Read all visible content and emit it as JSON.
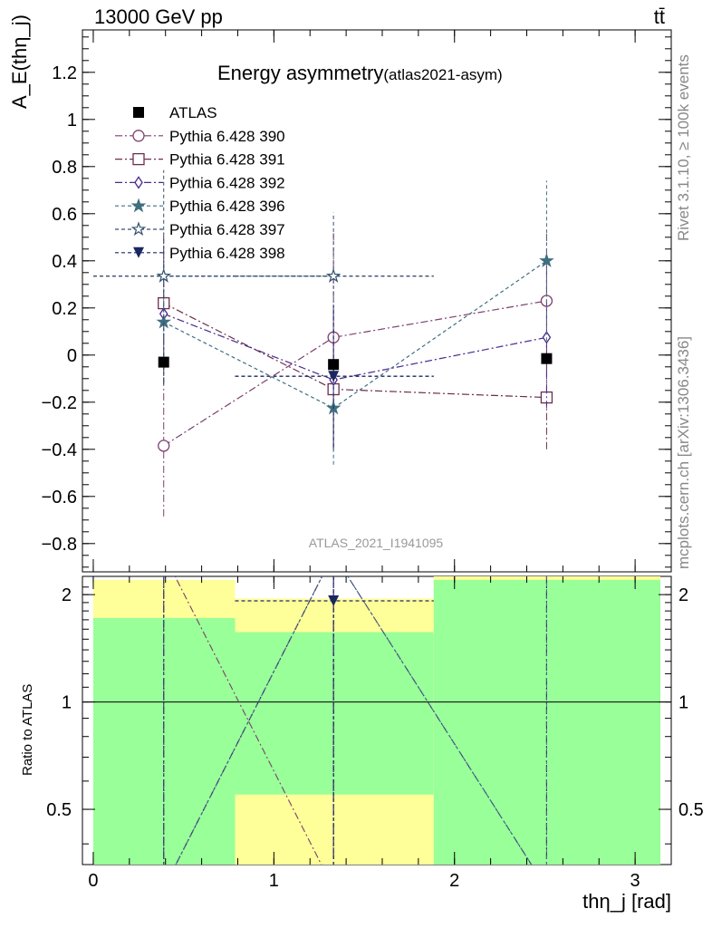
{
  "header": {
    "energy": "13000 GeV pp",
    "process": "tt̄"
  },
  "side_labels": {
    "rivet": "Rivet 3.1.10, ≥ 100k events",
    "mcplots": "mcplots.cern.ch [arXiv:1306.3436]"
  },
  "colors": {
    "band_green": "#99ff99",
    "band_yellow": "#ffff99",
    "data": "#000000"
  },
  "chart_data": {
    "type": "scatter",
    "title": "Energy asymmetry",
    "title_sub": "(atlas2021-asym)",
    "watermark": "ATLAS_2021_I1941095",
    "ylabel": "A_E(thη_j)",
    "ratio_ylabel": "Ratio to ATLAS",
    "xlabel": "thη_j [rad]",
    "xlim": [
      -0.06,
      3.2
    ],
    "ylim": [
      -0.92,
      1.38
    ],
    "ratio_ylim": [
      0.35,
      2.25
    ],
    "x_ticks": [
      0,
      1,
      2,
      3
    ],
    "y_ticks": [
      -0.8,
      -0.6,
      -0.4,
      -0.2,
      0,
      0.2,
      0.4,
      0.6,
      0.8,
      1,
      1.2
    ],
    "ratio_y_ticks": [
      0.5,
      1,
      2
    ],
    "legend_position": "top-left",
    "bins": [
      {
        "x": 0.39,
        "xlow": 0.0,
        "xhigh": 0.785
      },
      {
        "x": 1.33,
        "xlow": 0.785,
        "xhigh": 1.885
      },
      {
        "x": 2.51,
        "xlow": 1.885,
        "xhigh": 3.14
      }
    ],
    "data": {
      "name": "ATLAS",
      "y": [
        -0.03,
        -0.04,
        -0.015
      ],
      "band_inner": [
        [
          0.35,
          1.72
        ],
        [
          0.55,
          1.57
        ],
        [
          0.35,
          2.2
        ]
      ],
      "band_outer": [
        [
          0.35,
          2.2
        ],
        [
          0.35,
          1.95
        ],
        [
          0.35,
          2.25
        ]
      ]
    },
    "series": [
      {
        "name": "Pythia 6.428 390",
        "color": "#7b3f6e",
        "marker": "open-circle",
        "dash": "8 3 2 3",
        "y": [
          -0.385,
          0.075,
          0.23
        ],
        "err": [
          0.3,
          0.45,
          0.3
        ],
        "xerr": [
          false,
          false,
          false
        ]
      },
      {
        "name": "Pythia 6.428 391",
        "color": "#6b2f4f",
        "marker": "open-square",
        "dash": "8 3 2 3",
        "y": [
          0.22,
          -0.145,
          -0.18
        ],
        "err": [
          0.3,
          0.25,
          0.22
        ],
        "xerr": [
          false,
          false,
          false
        ]
      },
      {
        "name": "Pythia 6.428 392",
        "color": "#4a2a8c",
        "marker": "open-diamond",
        "dash": "8 3 2 3",
        "y": [
          0.175,
          -0.105,
          0.075
        ],
        "err": [
          0.3,
          0.3,
          0.3
        ],
        "xerr": [
          false,
          false,
          false
        ]
      },
      {
        "name": "Pythia 6.428 396",
        "color": "#3f6f80",
        "marker": "star",
        "dash": "4 3",
        "y": [
          0.14,
          -0.225,
          0.4
        ],
        "err": [
          0.25,
          0.24,
          0.34
        ],
        "xerr": [
          false,
          false,
          false
        ]
      },
      {
        "name": "Pythia 6.428 397",
        "color": "#34506e",
        "marker": "open-star",
        "dash": "4 3",
        "y": [
          0.335,
          0.335,
          null
        ],
        "err": [
          0.45,
          0.27,
          null
        ],
        "xerr": [
          true,
          true,
          false
        ]
      },
      {
        "name": "Pythia 6.428 398",
        "color": "#1a2760",
        "marker": "filled-triangle-down",
        "dash": "4 3",
        "y": [
          null,
          -0.09,
          null
        ],
        "err": [
          null,
          0.3,
          null
        ],
        "xerr": [
          false,
          true,
          false
        ]
      }
    ]
  }
}
